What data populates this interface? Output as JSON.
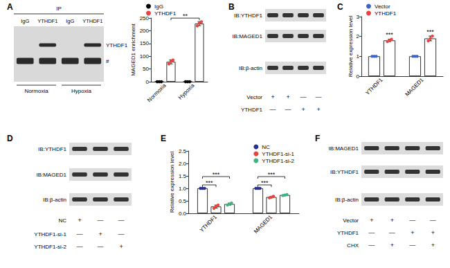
{
  "chart_data": [
    {
      "type": "bar",
      "title": "A",
      "ylabel": "MAGED1 enrichment",
      "categories": [
        "Normoxia",
        "Hypoxia"
      ],
      "ylim": [
        0,
        250
      ],
      "yticks": [
        0,
        50,
        100,
        150,
        200,
        250
      ],
      "legend": "upper left",
      "series": [
        {
          "name": "IgG",
          "color": "#000000",
          "values": [
            0,
            0
          ],
          "errors": [
            0,
            0
          ],
          "points": [
            [
              0,
              0,
              0
            ],
            [
              0,
              0,
              0
            ]
          ]
        },
        {
          "name": "YTHDF1",
          "color": "#e8433f",
          "values": [
            78,
            228
          ],
          "errors": [
            8,
            8
          ],
          "points": [
            [
              70,
              80,
              85
            ],
            [
              219,
              230,
              235
            ]
          ]
        }
      ],
      "annotations": [
        {
          "text": "**",
          "between": [
            {
              "category": "Normoxia",
              "series": "YTHDF1"
            },
            {
              "category": "Hypoxia",
              "series": "YTHDF1"
            }
          ]
        }
      ]
    },
    {
      "type": "bar",
      "title": "C",
      "ylabel": "Relative expression level",
      "categories": [
        "YTHDF1",
        "MAGED1"
      ],
      "ylim": [
        0,
        3
      ],
      "yticks": [
        0,
        1,
        2,
        3
      ],
      "legend": "upper left",
      "series": [
        {
          "name": "Vector",
          "color": "#3d63c9",
          "values": [
            1,
            1
          ],
          "errors": [
            0,
            0
          ],
          "points": [
            [
              1,
              1,
              1
            ],
            [
              1,
              1,
              1
            ]
          ]
        },
        {
          "name": "YTHDF1",
          "color": "#e8433f",
          "values": [
            1.8,
            1.9
          ],
          "errors": [
            0.06,
            0.12
          ],
          "points": [
            [
              1.74,
              1.8,
              1.86
            ],
            [
              1.78,
              1.9,
              2.02
            ]
          ]
        }
      ],
      "annotations": [
        {
          "text": "***",
          "at": {
            "category": "YTHDF1",
            "series": "YTHDF1"
          }
        },
        {
          "text": "***",
          "at": {
            "category": "MAGED1",
            "series": "YTHDF1"
          }
        }
      ]
    },
    {
      "type": "bar",
      "title": "E",
      "ylabel": "Relative expression level",
      "categories": [
        "YTHDF1",
        "MAGED1"
      ],
      "ylim": [
        0,
        2.5
      ],
      "yticks": [
        {
          "value": 0,
          "label": "0.0"
        },
        0.5,
        {
          "value": 1,
          "label": "1.0"
        },
        1.5,
        {
          "value": 2,
          "label": "2.0"
        },
        2.5
      ],
      "legend": "upper right",
      "series": [
        {
          "name": "NC",
          "color": "#2b2f8e",
          "values": [
            1,
            1
          ],
          "errors": [
            0,
            0
          ],
          "points": [
            [
              1,
              1,
              1
            ],
            [
              1,
              1,
              1
            ]
          ]
        },
        {
          "name": "YTHDF1-si-1",
          "color": "#e8433f",
          "values": [
            0.27,
            0.65
          ],
          "errors": [
            0.06,
            0.03
          ],
          "points": [
            [
              0.2,
              0.28,
              0.33
            ],
            [
              0.62,
              0.65,
              0.68
            ]
          ]
        },
        {
          "name": "YTHDF1-si-2",
          "color": "#3fb37f",
          "values": [
            0.37,
            0.73
          ],
          "errors": [
            0.04,
            0.02
          ],
          "points": [
            [
              0.33,
              0.37,
              0.41
            ],
            [
              0.71,
              0.73,
              0.75
            ]
          ]
        }
      ],
      "annotations": [
        {
          "text": "***",
          "between": [
            {
              "category": "YTHDF1",
              "series": "NC"
            },
            {
              "category": "YTHDF1",
              "series": "YTHDF1-si-1"
            }
          ]
        },
        {
          "text": "***",
          "between": [
            {
              "category": "YTHDF1",
              "series": "NC"
            },
            {
              "category": "YTHDF1",
              "series": "YTHDF1-si-2"
            }
          ]
        },
        {
          "text": "***",
          "between": [
            {
              "category": "MAGED1",
              "series": "NC"
            },
            {
              "category": "MAGED1",
              "series": "YTHDF1-si-1"
            }
          ]
        },
        {
          "text": "***",
          "between": [
            {
              "category": "MAGED1",
              "series": "NC"
            },
            {
              "category": "MAGED1",
              "series": "YTHDF1-si-2"
            }
          ]
        }
      ]
    }
  ],
  "blots": [
    {
      "header": "IP",
      "lanes": [
        "IgG",
        "YTHDF1",
        "IgG",
        "YTHDF1"
      ],
      "rows": [
        {
          "label": "YTHDF1",
          "bands": [
            false,
            true,
            false,
            true
          ]
        },
        {
          "label": "#",
          "bands": [
            true,
            true,
            true,
            true
          ]
        }
      ],
      "groups": [
        "Normoxia",
        "Hypoxia"
      ]
    },
    {
      "panel": "B",
      "rows": [
        {
          "label": "IB:YTHDF1"
        },
        {
          "label": "IB:MAGED1"
        },
        {
          "label": "IB:β-actin"
        }
      ],
      "treatments": [
        {
          "label": "Vector",
          "marks": [
            "+",
            "+",
            "—",
            "—"
          ]
        },
        {
          "label": "YTHDF1",
          "marks": [
            "—",
            "—",
            "+",
            "+"
          ]
        }
      ]
    },
    {
      "panel": "D",
      "rows": [
        {
          "label": "IB:YTHDF1"
        },
        {
          "label": "IB:MAGED1"
        },
        {
          "label": "IB:β-actin"
        }
      ],
      "treatments": [
        {
          "label": "NC",
          "marks": [
            "+",
            "—",
            "—"
          ]
        },
        {
          "label": "YTHDF1-si-1",
          "marks": [
            "—",
            "+",
            "—"
          ]
        },
        {
          "label": "YTHDF1-si-2",
          "marks": [
            "—",
            "—",
            "+"
          ]
        }
      ]
    },
    {
      "panel": "F",
      "rows": [
        {
          "label": "IB:MAGED1"
        },
        {
          "label": "IB:YTHDF1"
        },
        {
          "label": "IB:β-actin"
        }
      ],
      "treatments": [
        {
          "label": "Vector",
          "marks": [
            "+",
            "+",
            "—",
            "—"
          ]
        },
        {
          "label": "YTHDF1",
          "marks": [
            "—",
            "—",
            "+",
            "+"
          ]
        },
        {
          "label": "CHX",
          "marks": [
            "—",
            "+",
            "—",
            "+"
          ]
        }
      ]
    }
  ]
}
